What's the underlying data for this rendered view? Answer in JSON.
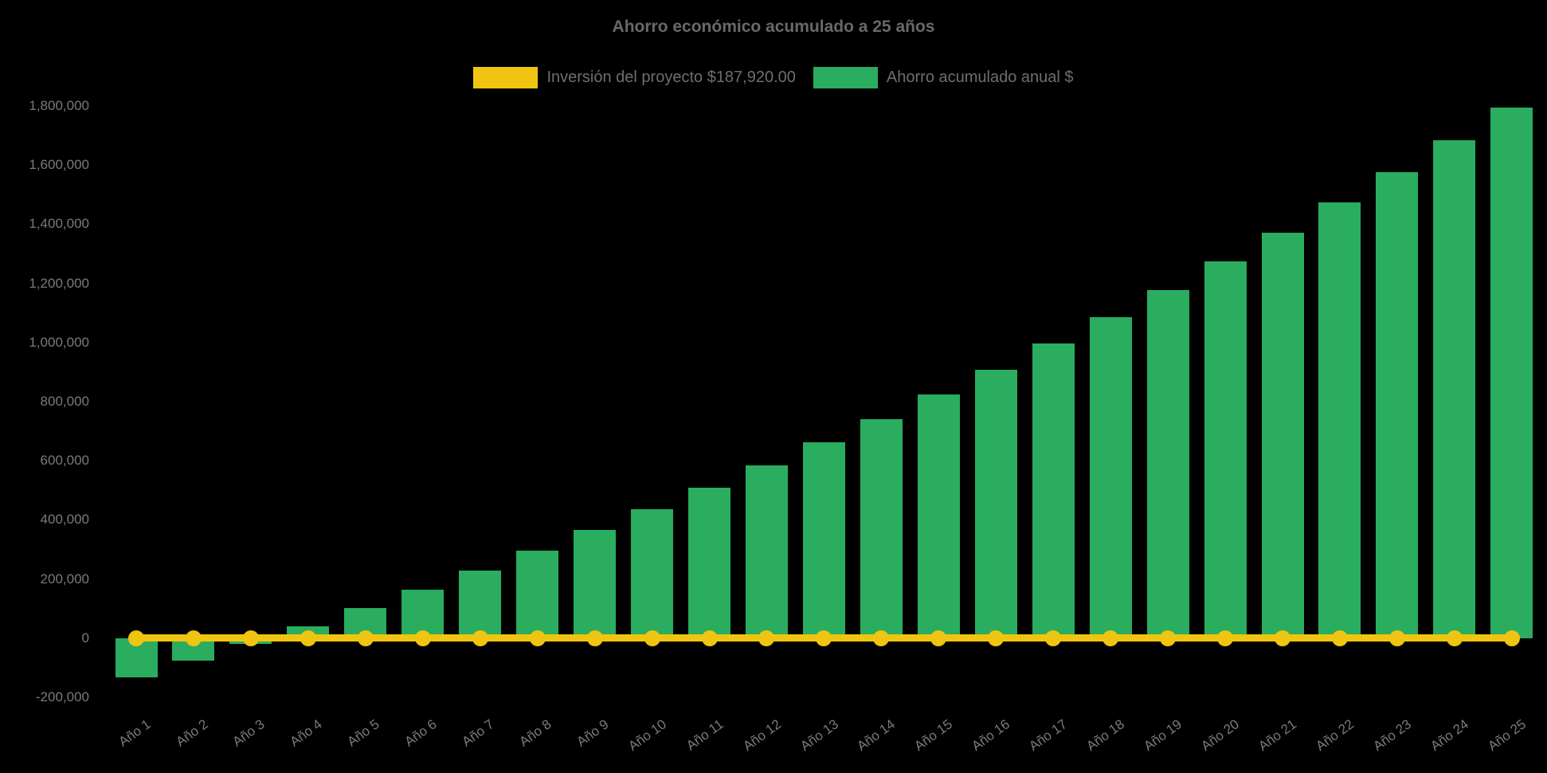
{
  "chart": {
    "title": "Ahorro económico acumulado a 25 años",
    "background_color": "#000000",
    "title_color": "#696969",
    "legend_text_color": "#6E6E6E",
    "axis_text_color": "#7A7A7A"
  },
  "legend": {
    "items": [
      {
        "label": "Inversión del proyecto $187,920.00",
        "color": "#F0C511",
        "series": "investment-line"
      },
      {
        "label": "Ahorro acumulado anual $",
        "color": "#2AAD5F",
        "series": "savings-bars"
      }
    ]
  },
  "chart_data": {
    "type": "bar",
    "title": "Ahorro económico acumulado a 25 años",
    "categories": [
      "Año 1",
      "Año 2",
      "Año 3",
      "Año 4",
      "Año 5",
      "Año 6",
      "Año 7",
      "Año 8",
      "Año 9",
      "Año 10",
      "Año 11",
      "Año 12",
      "Año 13",
      "Año 14",
      "Año 15",
      "Año 16",
      "Año 17",
      "Año 18",
      "Año 19",
      "Año 20",
      "Año 21",
      "Año 22",
      "Año 23",
      "Año 24",
      "Año 25"
    ],
    "series": [
      {
        "name": "Ahorro acumulado anual $",
        "type": "bar",
        "color": "#2AAD5F",
        "values": [
          -133000,
          -77000,
          -20000,
          40000,
          101000,
          164000,
          229000,
          296000,
          365000,
          436000,
          509000,
          584000,
          662000,
          741000,
          824000,
          908000,
          996000,
          1086000,
          1178000,
          1274000,
          1372000,
          1473000,
          1577000,
          1685000,
          1795000
        ]
      },
      {
        "name": "Inversión del proyecto $187,920.00",
        "type": "line",
        "color": "#F0C511",
        "investment_amount_label": "$187,920.00",
        "plotted_constant_value": 0,
        "point_markers": true
      }
    ],
    "xlabel": "",
    "ylabel": "",
    "ylim": [
      -200000,
      1800000
    ],
    "y_ticks": [
      -200000,
      0,
      200000,
      400000,
      600000,
      800000,
      1000000,
      1200000,
      1400000,
      1600000,
      1800000
    ],
    "grid": false,
    "legend_position": "top",
    "x_tick_rotation_deg": -36
  }
}
